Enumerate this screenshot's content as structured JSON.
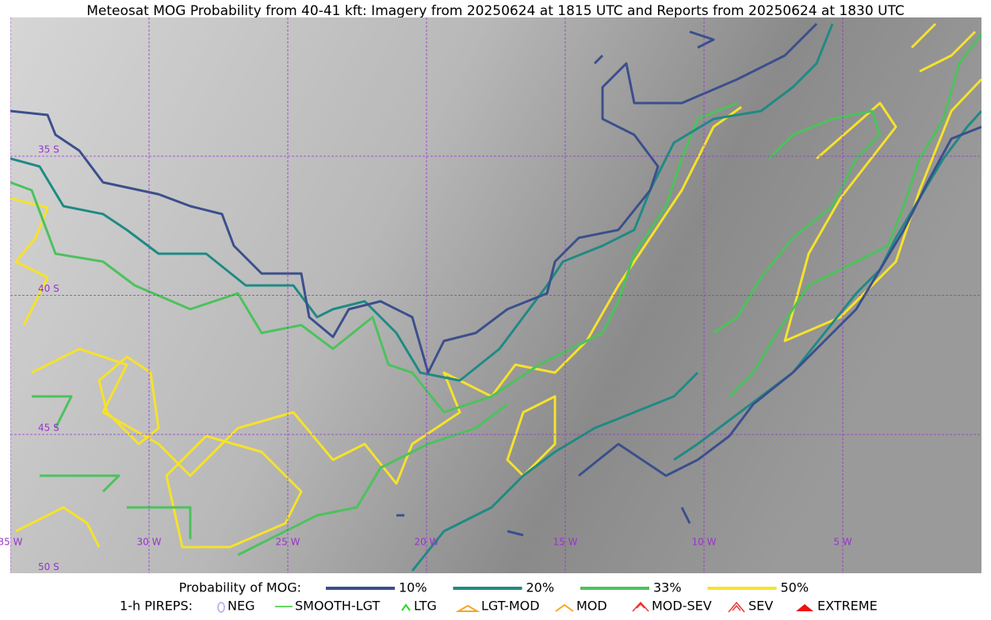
{
  "header": {
    "title": "Meteosat MOG Probability from 40-41 kft: Imagery from 20250624 at 1815 UTC and Reports from 20250624 at 1830 UTC"
  },
  "map": {
    "lon_labels": [
      "35 W",
      "30 W",
      "25 W",
      "20 W",
      "15 W",
      "10 W",
      "5 W"
    ],
    "lat_labels": [
      "35 S",
      "40 S",
      "45 S",
      "50 S"
    ]
  },
  "legend": {
    "probability": {
      "title": "Probability of MOG:",
      "items": [
        {
          "label": "10%",
          "color": "#3b4f8c"
        },
        {
          "label": "20%",
          "color": "#1f8a84"
        },
        {
          "label": "33%",
          "color": "#4cc25c"
        },
        {
          "label": "50%",
          "color": "#f6e22b"
        }
      ]
    },
    "pireps": {
      "title": "1-h PIREPS:",
      "items": [
        {
          "label": "NEG",
          "color": "#b9b9f0"
        },
        {
          "label": "SMOOTH-LGT",
          "color": "#33cc33"
        },
        {
          "label": "LTG",
          "color": "#22dd22"
        },
        {
          "label": "LGT-MOD",
          "color": "#f5a623"
        },
        {
          "label": "MOD",
          "color": "#f5a623"
        },
        {
          "label": "MOD-SEV",
          "color": "#ee3333"
        },
        {
          "label": "SEV",
          "color": "#ee3333"
        },
        {
          "label": "EXTREME",
          "color": "#ee1111"
        }
      ]
    }
  }
}
